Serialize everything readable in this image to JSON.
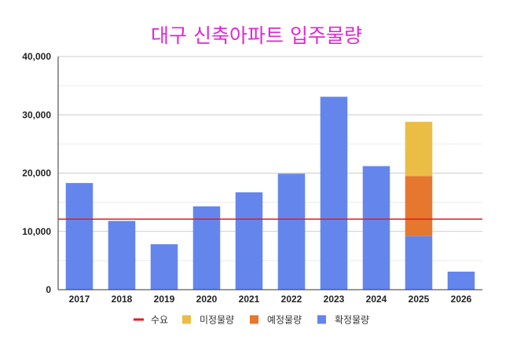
{
  "title": "대구 신축아파트 입주물량",
  "colors": {
    "title": "#e026d6",
    "confirmed": "#6486ec",
    "planned": "#e5772f",
    "undetermined": "#ebbd45",
    "demand": "#dd1f1f"
  },
  "chart_data": {
    "type": "bar",
    "stacked": true,
    "title": "대구 신축아파트 입주물량",
    "categories": [
      "2017",
      "2018",
      "2019",
      "2020",
      "2021",
      "2022",
      "2023",
      "2024",
      "2025",
      "2026"
    ],
    "series": [
      {
        "name": "확정물량",
        "values": [
          18300,
          11800,
          7800,
          14300,
          16700,
          19900,
          33100,
          21200,
          9200,
          3100
        ]
      },
      {
        "name": "예정물량",
        "values": [
          0,
          0,
          0,
          0,
          0,
          0,
          0,
          0,
          10300,
          0
        ]
      },
      {
        "name": "미정물량",
        "values": [
          0,
          0,
          0,
          0,
          0,
          0,
          0,
          0,
          9300,
          0
        ]
      }
    ],
    "line": {
      "name": "수요",
      "value": 12100
    },
    "ylim": [
      0,
      40000
    ],
    "yticks": [
      "0",
      "10,000",
      "20,000",
      "30,000",
      "40,000"
    ],
    "yticks_values": [
      0,
      10000,
      20000,
      30000,
      40000
    ],
    "grid": true,
    "legend_position": "bottom",
    "legend": [
      "수요",
      "미정물량",
      "예정물량",
      "확정물량"
    ]
  }
}
